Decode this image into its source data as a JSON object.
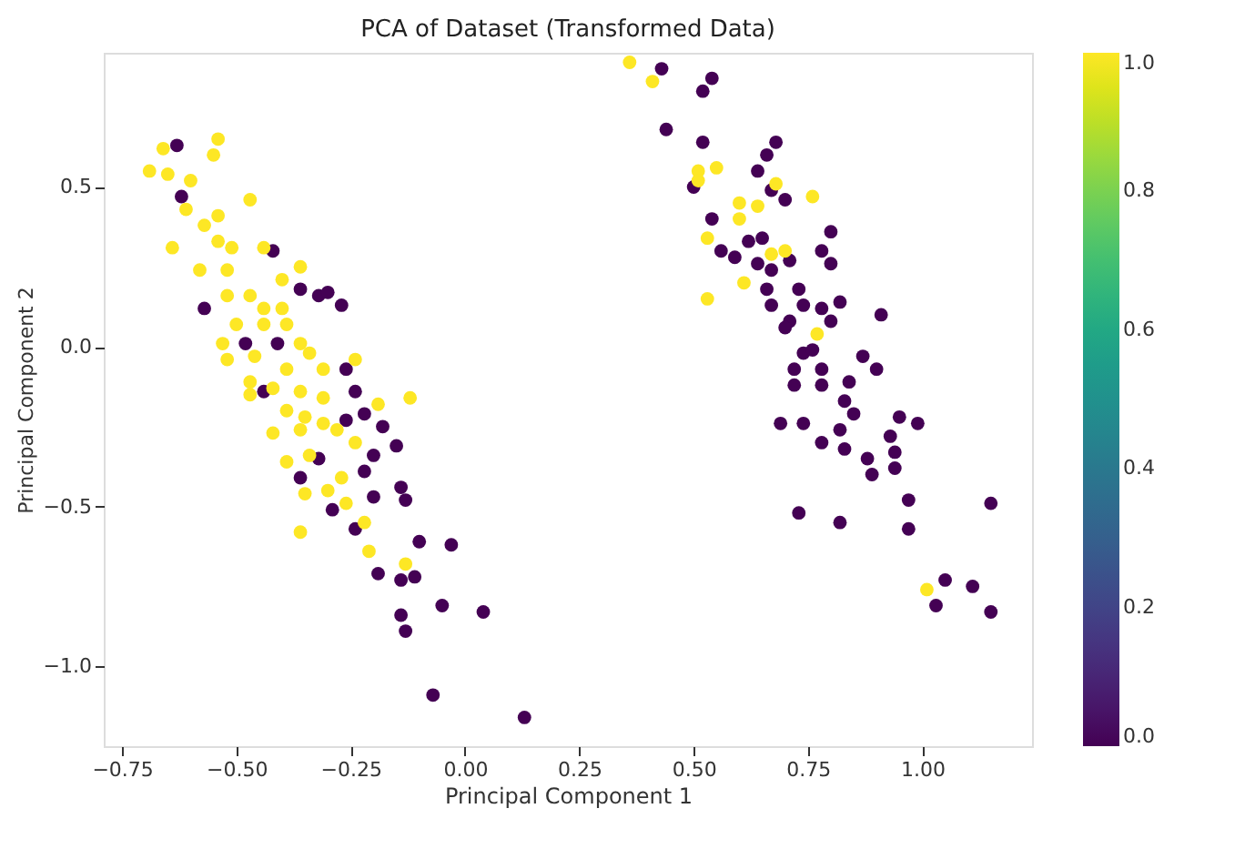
{
  "chart_data": {
    "type": "scatter",
    "title": "PCA of Dataset (Transformed Data)",
    "xlabel": "Principal Component 1",
    "ylabel": "Principal Component 2",
    "x": [
      -0.63,
      -0.62,
      -0.57,
      -0.36,
      -0.32,
      -0.3,
      -0.27,
      -0.48,
      -0.44,
      -0.41,
      -0.24,
      -0.26,
      -0.22,
      -0.18,
      -0.15,
      -0.2,
      -0.22,
      -0.32,
      -0.36,
      -0.29,
      -0.24,
      -0.2,
      -0.14,
      -0.13,
      -0.1,
      -0.03,
      -0.19,
      -0.14,
      -0.11,
      -0.05,
      0.04,
      -0.14,
      -0.13,
      -0.07,
      0.13,
      -0.42,
      -0.26,
      -0.66,
      -0.54,
      -0.55,
      -0.69,
      -0.65,
      -0.6,
      -0.47,
      -0.61,
      -0.57,
      -0.54,
      -0.64,
      -0.54,
      -0.51,
      -0.44,
      -0.58,
      -0.52,
      -0.4,
      -0.36,
      -0.52,
      -0.47,
      -0.44,
      -0.4,
      -0.5,
      -0.44,
      -0.39,
      -0.53,
      -0.46,
      -0.52,
      -0.36,
      -0.34,
      -0.31,
      -0.39,
      -0.47,
      -0.42,
      -0.47,
      -0.36,
      -0.24,
      -0.12,
      -0.19,
      -0.35,
      -0.31,
      -0.42,
      -0.36,
      -0.28,
      -0.24,
      -0.39,
      -0.34,
      -0.35,
      -0.27,
      -0.3,
      -0.26,
      -0.36,
      -0.22,
      -0.21,
      -0.13,
      -0.31,
      -0.39,
      0.43,
      0.54,
      0.52,
      0.44,
      0.52,
      0.68,
      0.66,
      0.64,
      0.67,
      0.7,
      0.5,
      0.54,
      0.56,
      0.59,
      0.62,
      0.65,
      0.64,
      0.67,
      0.66,
      0.71,
      0.8,
      0.78,
      0.8,
      0.73,
      0.67,
      0.74,
      0.71,
      0.7,
      0.78,
      0.82,
      0.8,
      0.91,
      0.74,
      0.76,
      0.72,
      0.78,
      0.72,
      0.78,
      0.84,
      0.87,
      0.9,
      0.83,
      0.85,
      0.69,
      0.74,
      0.82,
      0.78,
      0.83,
      0.88,
      0.93,
      0.95,
      0.99,
      0.94,
      0.89,
      0.94,
      0.97,
      1.15,
      0.97,
      0.73,
      0.82,
      1.05,
      1.11,
      1.03,
      1.15,
      0.36,
      0.41,
      0.51,
      0.55,
      0.51,
      0.6,
      0.64,
      0.6,
      0.68,
      0.76,
      0.53,
      0.67,
      0.7,
      0.61,
      0.53,
      0.77,
      1.01
    ],
    "values": [
      0.63,
      0.47,
      0.12,
      0.18,
      0.16,
      0.17,
      0.13,
      0.01,
      -0.14,
      0.01,
      -0.14,
      -0.23,
      -0.21,
      -0.25,
      -0.31,
      -0.34,
      -0.39,
      -0.35,
      -0.41,
      -0.51,
      -0.57,
      -0.47,
      -0.44,
      -0.48,
      -0.61,
      -0.62,
      -0.71,
      -0.73,
      -0.72,
      -0.81,
      -0.83,
      -0.84,
      -0.89,
      -1.09,
      -1.16,
      0.3,
      -0.07,
      0.62,
      0.65,
      0.6,
      0.55,
      0.54,
      0.52,
      0.46,
      0.43,
      0.38,
      0.41,
      0.31,
      0.33,
      0.31,
      0.31,
      0.24,
      0.24,
      0.21,
      0.25,
      0.16,
      0.16,
      0.12,
      0.12,
      0.07,
      0.07,
      0.07,
      0.01,
      -0.03,
      -0.04,
      0.01,
      -0.02,
      -0.07,
      -0.07,
      -0.11,
      -0.13,
      -0.15,
      -0.14,
      -0.04,
      -0.16,
      -0.18,
      -0.22,
      -0.24,
      -0.27,
      -0.26,
      -0.26,
      -0.3,
      -0.36,
      -0.34,
      -0.46,
      -0.41,
      -0.45,
      -0.49,
      -0.58,
      -0.55,
      -0.64,
      -0.68,
      -0.16,
      -0.2,
      0.87,
      0.84,
      0.8,
      0.68,
      0.64,
      0.64,
      0.6,
      0.55,
      0.49,
      0.46,
      0.5,
      0.4,
      0.3,
      0.28,
      0.33,
      0.34,
      0.26,
      0.24,
      0.18,
      0.27,
      0.36,
      0.3,
      0.26,
      0.18,
      0.13,
      0.13,
      0.08,
      0.06,
      0.12,
      0.14,
      0.08,
      0.1,
      -0.02,
      -0.01,
      -0.07,
      -0.07,
      -0.12,
      -0.12,
      -0.11,
      -0.03,
      -0.07,
      -0.17,
      -0.21,
      -0.24,
      -0.24,
      -0.26,
      -0.3,
      -0.32,
      -0.35,
      -0.28,
      -0.22,
      -0.24,
      -0.33,
      -0.4,
      -0.38,
      -0.48,
      -0.49,
      -0.57,
      -0.52,
      -0.55,
      -0.73,
      -0.75,
      -0.81,
      -0.83,
      0.89,
      0.83,
      0.55,
      0.56,
      0.52,
      0.45,
      0.44,
      0.4,
      0.51,
      0.47,
      0.34,
      0.29,
      0.3,
      0.2,
      0.15,
      0.04,
      -0.76
    ],
    "cvalues": [
      0,
      0,
      0,
      0,
      0,
      0,
      0,
      0,
      0,
      0,
      0,
      0,
      0,
      0,
      0,
      0,
      0,
      0,
      0,
      0,
      0,
      0,
      0,
      0,
      0,
      0,
      0,
      0,
      0,
      0,
      0,
      0,
      0,
      0,
      0,
      0,
      0,
      1,
      1,
      1,
      1,
      1,
      1,
      1,
      1,
      1,
      1,
      1,
      1,
      1,
      1,
      1,
      1,
      1,
      1,
      1,
      1,
      1,
      1,
      1,
      1,
      1,
      1,
      1,
      1,
      1,
      1,
      1,
      1,
      1,
      1,
      1,
      1,
      1,
      1,
      1,
      1,
      1,
      1,
      1,
      1,
      1,
      1,
      1,
      1,
      1,
      1,
      1,
      1,
      1,
      1,
      1,
      1,
      1,
      0,
      0,
      0,
      0,
      0,
      0,
      0,
      0,
      0,
      0,
      0,
      0,
      0,
      0,
      0,
      0,
      0,
      0,
      0,
      0,
      0,
      0,
      0,
      0,
      0,
      0,
      0,
      0,
      0,
      0,
      0,
      0,
      0,
      0,
      0,
      0,
      0,
      0,
      0,
      0,
      0,
      0,
      0,
      0,
      0,
      0,
      0,
      0,
      0,
      0,
      0,
      0,
      0,
      0,
      0,
      0,
      0,
      0,
      0,
      0,
      0,
      0,
      0,
      0,
      1,
      1,
      1,
      1,
      1,
      1,
      1,
      1,
      1,
      1,
      1,
      1,
      1,
      1,
      1,
      1,
      1
    ],
    "xlim": [
      -0.79,
      1.24
    ],
    "ylim": [
      -1.25,
      0.92
    ],
    "xticks": [
      {
        "value": -0.75,
        "label": "−0.75"
      },
      {
        "value": -0.5,
        "label": "−0.50"
      },
      {
        "value": -0.25,
        "label": "−0.25"
      },
      {
        "value": 0,
        "label": "0.00"
      },
      {
        "value": 0.25,
        "label": "0.25"
      },
      {
        "value": 0.5,
        "label": "0.50"
      },
      {
        "value": 0.75,
        "label": "0.75"
      },
      {
        "value": 1,
        "label": "1.00"
      }
    ],
    "yticks": [
      {
        "value": -1,
        "label": "−1.0"
      },
      {
        "value": -0.5,
        "label": "−0.5"
      },
      {
        "value": 0,
        "label": "0.0"
      },
      0.5
    ],
    "clim": [
      0,
      1
    ],
    "cticks": [
      {
        "value": 0,
        "label": "0.0"
      },
      0.2,
      0.4,
      0.6,
      0.8,
      {
        "value": 1,
        "label": "1.0"
      }
    ],
    "marker": "circle",
    "grid": false
  }
}
